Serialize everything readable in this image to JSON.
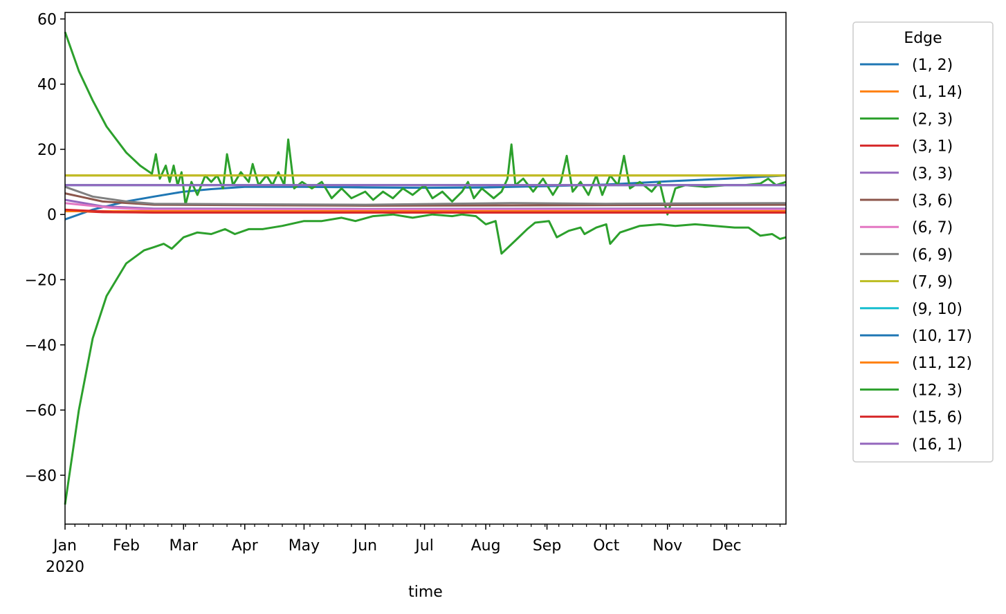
{
  "chart_data": {
    "type": "line",
    "title": "",
    "xlabel": "time",
    "ylabel": "",
    "x_range": [
      "2020-01-01",
      "2020-12-31"
    ],
    "ylim": [
      -95,
      62
    ],
    "y_ticks": [
      60,
      40,
      20,
      0,
      -20,
      -40,
      -60,
      -80
    ],
    "y_tick_labels": [
      "60",
      "40",
      "20",
      "0",
      "−20",
      "−40",
      "−60",
      "−80"
    ],
    "x_ticks": [
      "2020-01-01",
      "2020-02-01",
      "2020-03-01",
      "2020-04-01",
      "2020-05-01",
      "2020-06-01",
      "2020-07-01",
      "2020-08-01",
      "2020-09-01",
      "2020-10-01",
      "2020-11-01",
      "2020-12-01"
    ],
    "x_tick_labels": [
      "Jan",
      "Feb",
      "Mar",
      "Apr",
      "May",
      "Jun",
      "Jul",
      "Aug",
      "Sep",
      "Oct",
      "Nov",
      "Dec"
    ],
    "x_year_label": "2020",
    "grid": false,
    "legend": {
      "title": "Edge",
      "placement": "outside-right"
    },
    "series": [
      {
        "name": "(1, 2)",
        "color": "#1f77b4",
        "points": [
          [
            "2020-01-01",
            -1.5
          ],
          [
            "2020-01-15",
            1.5
          ],
          [
            "2020-02-01",
            4
          ],
          [
            "2020-02-15",
            5.5
          ],
          [
            "2020-03-01",
            7
          ],
          [
            "2020-03-15",
            7.8
          ],
          [
            "2020-04-01",
            8.5
          ],
          [
            "2020-05-01",
            8.5
          ],
          [
            "2020-06-01",
            8.3
          ],
          [
            "2020-07-01",
            8.2
          ],
          [
            "2020-08-01",
            8.3
          ],
          [
            "2020-09-01",
            8.7
          ],
          [
            "2020-10-01",
            9.2
          ],
          [
            "2020-11-01",
            10.2
          ],
          [
            "2020-12-01",
            11
          ],
          [
            "2020-12-31",
            12
          ]
        ]
      },
      {
        "name": "(1, 14)",
        "color": "#ff7f0e",
        "points": [
          [
            "2020-01-01",
            12
          ],
          [
            "2020-12-31",
            12
          ]
        ]
      },
      {
        "name": "(2, 3)",
        "color": "#2ca02c",
        "points": [
          [
            "2020-01-01",
            56
          ],
          [
            "2020-01-08",
            44
          ],
          [
            "2020-01-15",
            35
          ],
          [
            "2020-01-22",
            27
          ],
          [
            "2020-02-01",
            19
          ],
          [
            "2020-02-08",
            15
          ],
          [
            "2020-02-14",
            12.5
          ],
          [
            "2020-02-16",
            18.5
          ],
          [
            "2020-02-18",
            11
          ],
          [
            "2020-02-21",
            15
          ],
          [
            "2020-02-23",
            10
          ],
          [
            "2020-02-25",
            15
          ],
          [
            "2020-02-27",
            9
          ],
          [
            "2020-02-29",
            13
          ],
          [
            "2020-03-02",
            3
          ],
          [
            "2020-03-05",
            10
          ],
          [
            "2020-03-08",
            6
          ],
          [
            "2020-03-12",
            12
          ],
          [
            "2020-03-15",
            10
          ],
          [
            "2020-03-18",
            12
          ],
          [
            "2020-03-21",
            8
          ],
          [
            "2020-03-23",
            18.5
          ],
          [
            "2020-03-26",
            9
          ],
          [
            "2020-03-30",
            13
          ],
          [
            "2020-04-03",
            10
          ],
          [
            "2020-04-05",
            15.5
          ],
          [
            "2020-04-08",
            9
          ],
          [
            "2020-04-12",
            12
          ],
          [
            "2020-04-15",
            9
          ],
          [
            "2020-04-18",
            13
          ],
          [
            "2020-04-21",
            9
          ],
          [
            "2020-04-23",
            23
          ],
          [
            "2020-04-26",
            8
          ],
          [
            "2020-04-30",
            10
          ],
          [
            "2020-05-05",
            8
          ],
          [
            "2020-05-10",
            10
          ],
          [
            "2020-05-15",
            5
          ],
          [
            "2020-05-20",
            8
          ],
          [
            "2020-05-25",
            5
          ],
          [
            "2020-06-01",
            7
          ],
          [
            "2020-06-05",
            4.5
          ],
          [
            "2020-06-10",
            7
          ],
          [
            "2020-06-15",
            5
          ],
          [
            "2020-06-20",
            8
          ],
          [
            "2020-06-25",
            6
          ],
          [
            "2020-07-01",
            9
          ],
          [
            "2020-07-05",
            5
          ],
          [
            "2020-07-10",
            7
          ],
          [
            "2020-07-15",
            4
          ],
          [
            "2020-07-20",
            7
          ],
          [
            "2020-07-23",
            10
          ],
          [
            "2020-07-26",
            5
          ],
          [
            "2020-07-30",
            8
          ],
          [
            "2020-08-05",
            5
          ],
          [
            "2020-08-09",
            7
          ],
          [
            "2020-08-12",
            11
          ],
          [
            "2020-08-14",
            21.5
          ],
          [
            "2020-08-16",
            9
          ],
          [
            "2020-08-20",
            11
          ],
          [
            "2020-08-25",
            7
          ],
          [
            "2020-08-30",
            11
          ],
          [
            "2020-09-04",
            6
          ],
          [
            "2020-09-08",
            10
          ],
          [
            "2020-09-11",
            18
          ],
          [
            "2020-09-14",
            7
          ],
          [
            "2020-09-18",
            10
          ],
          [
            "2020-09-22",
            6
          ],
          [
            "2020-09-26",
            12
          ],
          [
            "2020-09-29",
            6
          ],
          [
            "2020-10-03",
            12
          ],
          [
            "2020-10-07",
            9
          ],
          [
            "2020-10-10",
            18
          ],
          [
            "2020-10-13",
            8
          ],
          [
            "2020-10-18",
            10
          ],
          [
            "2020-10-24",
            7
          ],
          [
            "2020-10-28",
            10
          ],
          [
            "2020-11-01",
            0
          ],
          [
            "2020-11-05",
            8
          ],
          [
            "2020-11-10",
            9
          ],
          [
            "2020-11-20",
            8.5
          ],
          [
            "2020-12-01",
            9
          ],
          [
            "2020-12-10",
            9
          ],
          [
            "2020-12-18",
            9.5
          ],
          [
            "2020-12-22",
            11
          ],
          [
            "2020-12-26",
            9
          ],
          [
            "2020-12-31",
            10
          ]
        ]
      },
      {
        "name": "(3, 1)",
        "color": "#d62728",
        "points": [
          [
            "2020-01-01",
            1.2
          ],
          [
            "2020-01-20",
            0.7
          ],
          [
            "2020-02-15",
            0.6
          ],
          [
            "2020-12-31",
            0.6
          ]
        ]
      },
      {
        "name": "(3, 3)",
        "color": "#9467bd",
        "points": [
          [
            "2020-01-01",
            4.5
          ],
          [
            "2020-01-20",
            2.5
          ],
          [
            "2020-02-15",
            1.8
          ],
          [
            "2020-06-01",
            1.7
          ],
          [
            "2020-12-31",
            1.8
          ]
        ]
      },
      {
        "name": "(3, 6)",
        "color": "#8c564b",
        "points": [
          [
            "2020-01-01",
            6.5
          ],
          [
            "2020-01-20",
            4
          ],
          [
            "2020-02-15",
            3
          ],
          [
            "2020-06-01",
            2.7
          ],
          [
            "2020-12-31",
            3
          ]
        ]
      },
      {
        "name": "(6, 7)",
        "color": "#e377c2",
        "points": [
          [
            "2020-01-01",
            3.5
          ],
          [
            "2020-01-25",
            2
          ],
          [
            "2020-02-15",
            1.5
          ],
          [
            "2020-12-31",
            1.5
          ]
        ]
      },
      {
        "name": "(6, 9)",
        "color": "#7f7f7f",
        "points": [
          [
            "2020-01-01",
            8.5
          ],
          [
            "2020-01-15",
            5.5
          ],
          [
            "2020-02-01",
            4
          ],
          [
            "2020-02-15",
            3.3
          ],
          [
            "2020-03-15",
            3.2
          ],
          [
            "2020-06-01",
            3
          ],
          [
            "2020-08-14",
            3.5
          ],
          [
            "2020-10-01",
            3.3
          ],
          [
            "2020-12-31",
            3.5
          ]
        ]
      },
      {
        "name": "(7, 9)",
        "color": "#bcbd22",
        "points": [
          [
            "2020-01-01",
            12
          ],
          [
            "2020-12-31",
            12
          ]
        ]
      },
      {
        "name": "(9, 10)",
        "color": "#17becf",
        "points": [
          [
            "2020-01-01",
            9
          ],
          [
            "2020-12-31",
            9
          ]
        ]
      },
      {
        "name": "(10, 17)",
        "color": "#1f77b4",
        "points": [
          [
            "2020-01-01",
            9
          ],
          [
            "2020-12-31",
            9
          ]
        ]
      },
      {
        "name": "(11, 12)",
        "color": "#ff7f0e",
        "points": [
          [
            "2020-01-01",
            1
          ],
          [
            "2020-12-31",
            1
          ]
        ]
      },
      {
        "name": "(12, 3)",
        "color": "#2ca02c",
        "points": [
          [
            "2020-01-01",
            -89
          ],
          [
            "2020-01-08",
            -60
          ],
          [
            "2020-01-15",
            -38
          ],
          [
            "2020-01-22",
            -25
          ],
          [
            "2020-02-01",
            -15
          ],
          [
            "2020-02-10",
            -11
          ],
          [
            "2020-02-15",
            -10
          ],
          [
            "2020-02-20",
            -9
          ],
          [
            "2020-02-24",
            -10.5
          ],
          [
            "2020-03-01",
            -7
          ],
          [
            "2020-03-08",
            -5.5
          ],
          [
            "2020-03-15",
            -6
          ],
          [
            "2020-03-22",
            -4.5
          ],
          [
            "2020-03-27",
            -6
          ],
          [
            "2020-04-03",
            -4.5
          ],
          [
            "2020-04-10",
            -4.5
          ],
          [
            "2020-04-20",
            -3.5
          ],
          [
            "2020-05-01",
            -2
          ],
          [
            "2020-05-10",
            -2
          ],
          [
            "2020-05-20",
            -1
          ],
          [
            "2020-05-27",
            -2
          ],
          [
            "2020-06-05",
            -0.5
          ],
          [
            "2020-06-15",
            0
          ],
          [
            "2020-06-25",
            -1
          ],
          [
            "2020-07-05",
            0
          ],
          [
            "2020-07-15",
            -0.5
          ],
          [
            "2020-07-20",
            0
          ],
          [
            "2020-07-27",
            -0.5
          ],
          [
            "2020-08-01",
            -3
          ],
          [
            "2020-08-06",
            -2
          ],
          [
            "2020-08-09",
            -12
          ],
          [
            "2020-08-16",
            -8
          ],
          [
            "2020-08-22",
            -4.5
          ],
          [
            "2020-08-26",
            -2.5
          ],
          [
            "2020-09-02",
            -2
          ],
          [
            "2020-09-06",
            -7
          ],
          [
            "2020-09-12",
            -5
          ],
          [
            "2020-09-18",
            -4
          ],
          [
            "2020-09-20",
            -6
          ],
          [
            "2020-09-26",
            -4
          ],
          [
            "2020-10-01",
            -3
          ],
          [
            "2020-10-03",
            -9
          ],
          [
            "2020-10-08",
            -5.5
          ],
          [
            "2020-10-18",
            -3.5
          ],
          [
            "2020-10-28",
            -3
          ],
          [
            "2020-11-05",
            -3.5
          ],
          [
            "2020-11-15",
            -3
          ],
          [
            "2020-11-25",
            -3.5
          ],
          [
            "2020-12-05",
            -4
          ],
          [
            "2020-12-12",
            -4
          ],
          [
            "2020-12-18",
            -6.5
          ],
          [
            "2020-12-24",
            -6
          ],
          [
            "2020-12-28",
            -7.5
          ],
          [
            "2020-12-31",
            -7
          ]
        ]
      },
      {
        "name": "(15, 6)",
        "color": "#d62728",
        "points": [
          [
            "2020-01-01",
            1.5
          ],
          [
            "2020-01-25",
            0.8
          ],
          [
            "2020-02-15",
            0.6
          ],
          [
            "2020-12-31",
            0.6
          ]
        ]
      },
      {
        "name": "(16, 1)",
        "color": "#9467bd",
        "points": [
          [
            "2020-01-01",
            9
          ],
          [
            "2020-12-31",
            9
          ]
        ]
      }
    ]
  }
}
